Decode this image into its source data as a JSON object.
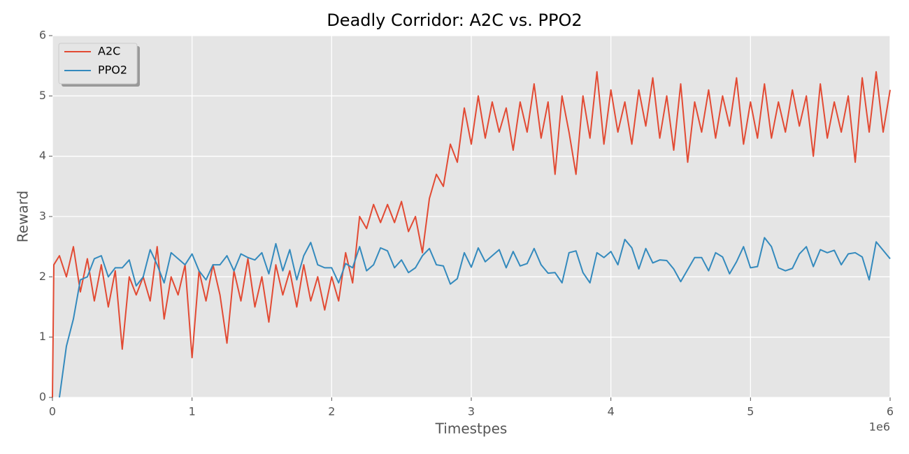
{
  "chart_data": {
    "type": "line",
    "title": "Deadly Corridor: A2C vs. PPO2",
    "x_label": "Timestpes",
    "y_label": "Reward",
    "x_offset_label": "1e6",
    "xlim": [
      0,
      6
    ],
    "xticks": [
      0,
      1,
      2,
      3,
      4,
      5,
      6
    ],
    "ylim": [
      0,
      6
    ],
    "yticks": [
      0,
      1,
      2,
      3,
      4,
      5,
      6
    ],
    "grid": true,
    "legend": "upper-left",
    "series": [
      {
        "name": "A2C",
        "color": "#e24a33",
        "x": [
          0,
          0.01,
          0.05,
          0.1,
          0.15,
          0.2,
          0.25,
          0.3,
          0.35,
          0.4,
          0.45,
          0.5,
          0.55,
          0.6,
          0.65,
          0.7,
          0.75,
          0.8,
          0.85,
          0.9,
          0.95,
          1.0,
          1.05,
          1.1,
          1.15,
          1.2,
          1.25,
          1.3,
          1.35,
          1.4,
          1.45,
          1.5,
          1.55,
          1.6,
          1.65,
          1.7,
          1.75,
          1.8,
          1.85,
          1.9,
          1.95,
          2.0,
          2.05,
          2.1,
          2.15,
          2.2,
          2.25,
          2.3,
          2.35,
          2.4,
          2.45,
          2.5,
          2.55,
          2.6,
          2.65,
          2.7,
          2.75,
          2.8,
          2.85,
          2.9,
          2.95,
          3.0,
          3.05,
          3.1,
          3.15,
          3.2,
          3.25,
          3.3,
          3.35,
          3.4,
          3.45,
          3.5,
          3.55,
          3.6,
          3.65,
          3.7,
          3.75,
          3.8,
          3.85,
          3.9,
          3.95,
          4.0,
          4.05,
          4.1,
          4.15,
          4.2,
          4.25,
          4.3,
          4.35,
          4.4,
          4.45,
          4.5,
          4.55,
          4.6,
          4.65,
          4.7,
          4.75,
          4.8,
          4.85,
          4.9,
          4.95,
          5.0,
          5.05,
          5.1,
          5.15,
          5.2,
          5.25,
          5.3,
          5.35,
          5.4,
          5.45,
          5.5,
          5.55,
          5.6,
          5.65,
          5.7,
          5.75,
          5.8,
          5.85,
          5.9,
          5.95,
          6.0
        ],
        "values": [
          0,
          2.2,
          2.35,
          2.0,
          2.5,
          1.75,
          2.3,
          1.6,
          2.2,
          1.5,
          2.1,
          0.8,
          2.0,
          1.7,
          2.0,
          1.6,
          2.5,
          1.3,
          2.0,
          1.7,
          2.2,
          0.66,
          2.1,
          1.6,
          2.2,
          1.7,
          0.9,
          2.1,
          1.6,
          2.3,
          1.5,
          2.0,
          1.25,
          2.2,
          1.7,
          2.1,
          1.5,
          2.2,
          1.6,
          2.0,
          1.45,
          2.0,
          1.6,
          2.4,
          1.9,
          3.0,
          2.8,
          3.2,
          2.9,
          3.2,
          2.9,
          3.25,
          2.75,
          3.0,
          2.4,
          3.3,
          3.7,
          3.5,
          4.2,
          3.9,
          4.8,
          4.2,
          5.0,
          4.3,
          4.9,
          4.4,
          4.8,
          4.1,
          4.9,
          4.4,
          5.2,
          4.3,
          4.9,
          3.7,
          5.0,
          4.4,
          3.7,
          5.0,
          4.3,
          5.4,
          4.2,
          5.1,
          4.4,
          4.9,
          4.2,
          5.1,
          4.5,
          5.3,
          4.3,
          5.0,
          4.1,
          5.2,
          3.9,
          4.9,
          4.4,
          5.1,
          4.3,
          5.0,
          4.5,
          5.3,
          4.2,
          4.9,
          4.3,
          5.2,
          4.3,
          4.9,
          4.4,
          5.1,
          4.5,
          5.0,
          4.0,
          5.2,
          4.3,
          4.9,
          4.4,
          5.0,
          3.9,
          5.3,
          4.4,
          5.4,
          4.4,
          5.1
        ]
      },
      {
        "name": "PPO2",
        "color": "#348abd",
        "x": [
          0.05,
          0.1,
          0.15,
          0.2,
          0.25,
          0.3,
          0.35,
          0.4,
          0.45,
          0.5,
          0.55,
          0.6,
          0.65,
          0.7,
          0.75,
          0.8,
          0.85,
          0.9,
          0.95,
          1.0,
          1.05,
          1.1,
          1.15,
          1.2,
          1.25,
          1.3,
          1.35,
          1.4,
          1.45,
          1.5,
          1.55,
          1.6,
          1.65,
          1.7,
          1.75,
          1.8,
          1.85,
          1.9,
          1.95,
          2.0,
          2.05,
          2.1,
          2.15,
          2.2,
          2.25,
          2.3,
          2.35,
          2.4,
          2.45,
          2.5,
          2.55,
          2.6,
          2.65,
          2.7,
          2.75,
          2.8,
          2.85,
          2.9,
          2.95,
          3.0,
          3.05,
          3.1,
          3.15,
          3.2,
          3.25,
          3.3,
          3.35,
          3.4,
          3.45,
          3.5,
          3.55,
          3.6,
          3.65,
          3.7,
          3.75,
          3.8,
          3.85,
          3.9,
          3.95,
          4.0,
          4.05,
          4.1,
          4.15,
          4.2,
          4.25,
          4.3,
          4.35,
          4.4,
          4.45,
          4.5,
          4.55,
          4.6,
          4.65,
          4.7,
          4.75,
          4.8,
          4.85,
          4.9,
          4.95,
          5.0,
          5.05,
          5.1,
          5.15,
          5.2,
          5.25,
          5.3,
          5.35,
          5.4,
          5.45,
          5.5,
          5.55,
          5.6,
          5.65,
          5.7,
          5.75,
          5.8,
          5.85,
          5.9,
          5.95,
          6.0
        ],
        "values": [
          0,
          0.85,
          1.3,
          1.95,
          2.0,
          2.3,
          2.35,
          2.0,
          2.15,
          2.15,
          2.28,
          1.85,
          2.0,
          2.45,
          2.2,
          1.9,
          2.4,
          2.3,
          2.2,
          2.38,
          2.1,
          1.95,
          2.2,
          2.2,
          2.35,
          2.1,
          2.38,
          2.32,
          2.28,
          2.4,
          2.05,
          2.55,
          2.1,
          2.45,
          1.95,
          2.35,
          2.57,
          2.2,
          2.15,
          2.15,
          1.9,
          2.22,
          2.15,
          2.5,
          2.1,
          2.2,
          2.48,
          2.43,
          2.15,
          2.28,
          2.07,
          2.15,
          2.35,
          2.47,
          2.2,
          2.18,
          1.88,
          1.97,
          2.4,
          2.16,
          2.48,
          2.25,
          2.35,
          2.45,
          2.15,
          2.42,
          2.18,
          2.22,
          2.47,
          2.2,
          2.06,
          2.07,
          1.9,
          2.4,
          2.43,
          2.07,
          1.9,
          2.4,
          2.32,
          2.42,
          2.2,
          2.62,
          2.48,
          2.13,
          2.47,
          2.23,
          2.28,
          2.27,
          2.13,
          1.92,
          2.12,
          2.32,
          2.32,
          2.1,
          2.4,
          2.33,
          2.05,
          2.25,
          2.5,
          2.15,
          2.17,
          2.65,
          2.5,
          2.15,
          2.1,
          2.14,
          2.38,
          2.5,
          2.17,
          2.45,
          2.4,
          2.44,
          2.2,
          2.38,
          2.4,
          2.33,
          1.95,
          2.58,
          2.44,
          2.3
        ]
      }
    ]
  }
}
